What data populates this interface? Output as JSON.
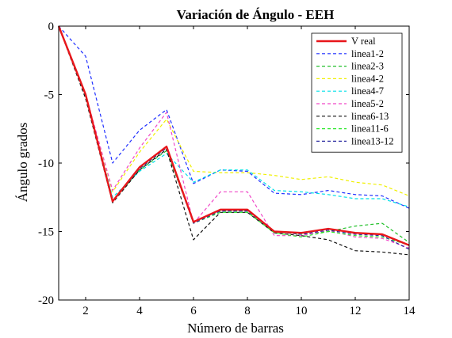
{
  "chart_data": {
    "type": "line",
    "title": "Variación de Ángulo - EEH",
    "xlabel": "Número de barras",
    "ylabel": "Ángulo grados",
    "xlim": [
      1,
      14
    ],
    "ylim": [
      -20,
      0
    ],
    "xticks": [
      2,
      4,
      6,
      8,
      10,
      12,
      14
    ],
    "yticks": [
      0,
      -5,
      -10,
      -15,
      -20
    ],
    "grid": false,
    "legend_position": "top-right",
    "x": [
      1,
      2,
      3,
      4,
      5,
      6,
      7,
      8,
      9,
      10,
      11,
      12,
      13,
      14
    ],
    "series": [
      {
        "name": "V real",
        "color": "#e8161b",
        "dashed": false,
        "values": [
          0,
          -5.0,
          -12.8,
          -10.3,
          -8.8,
          -14.3,
          -13.4,
          -13.4,
          -15.0,
          -15.1,
          -14.8,
          -15.1,
          -15.2,
          -16.0
        ]
      },
      {
        "name": "linea1-2",
        "color": "#1f2fff",
        "dashed": true,
        "values": [
          0,
          -2.2,
          -10.0,
          -7.6,
          -6.1,
          -11.5,
          -10.5,
          -10.6,
          -12.2,
          -12.3,
          -12.0,
          -12.3,
          -12.4,
          -13.3
        ]
      },
      {
        "name": "linea2-3",
        "color": "#22c02a",
        "dashed": true,
        "values": [
          0,
          -5.2,
          -12.8,
          -10.5,
          -9.1,
          -14.3,
          -13.5,
          -13.5,
          -15.0,
          -15.2,
          -15.0,
          -14.6,
          -14.4,
          -15.8
        ]
      },
      {
        "name": "linea4-2",
        "color": "#f0f000",
        "dashed": true,
        "values": [
          0,
          -5.0,
          -12.1,
          -9.2,
          -6.8,
          -10.6,
          -10.7,
          -10.7,
          -10.9,
          -11.2,
          -11.0,
          -11.4,
          -11.6,
          -12.4
        ]
      },
      {
        "name": "linea4-7",
        "color": "#00e0e8",
        "dashed": true,
        "values": [
          0,
          -5.1,
          -12.5,
          -10.6,
          -9.3,
          -11.4,
          -10.5,
          -10.5,
          -12.0,
          -12.1,
          -12.3,
          -12.6,
          -12.6,
          -13.2
        ]
      },
      {
        "name": "linea5-2",
        "color": "#f048c8",
        "dashed": true,
        "values": [
          0,
          -5.0,
          -12.0,
          -8.9,
          -6.3,
          -14.4,
          -12.1,
          -12.1,
          -15.3,
          -15.3,
          -14.9,
          -15.4,
          -15.5,
          -16.2
        ]
      },
      {
        "name": "linea6-13",
        "color": "#111111",
        "dashed": true,
        "values": [
          0,
          -5.3,
          -12.9,
          -10.5,
          -9.0,
          -15.6,
          -13.6,
          -13.6,
          -15.1,
          -15.3,
          -15.6,
          -16.4,
          -16.5,
          -16.7
        ]
      },
      {
        "name": "linea11-6",
        "color": "#2ce82c",
        "dashed": true,
        "values": [
          0,
          -5.1,
          -12.8,
          -10.4,
          -8.9,
          -14.4,
          -13.6,
          -13.6,
          -15.1,
          -15.4,
          -15.0,
          -15.3,
          -15.4,
          -16.0
        ]
      },
      {
        "name": "linea13-12",
        "color": "#2a2aa0",
        "dashed": true,
        "values": [
          0,
          -5.1,
          -12.8,
          -10.4,
          -8.9,
          -14.4,
          -13.5,
          -13.5,
          -15.0,
          -15.2,
          -14.9,
          -15.2,
          -15.3,
          -16.3
        ]
      }
    ]
  }
}
